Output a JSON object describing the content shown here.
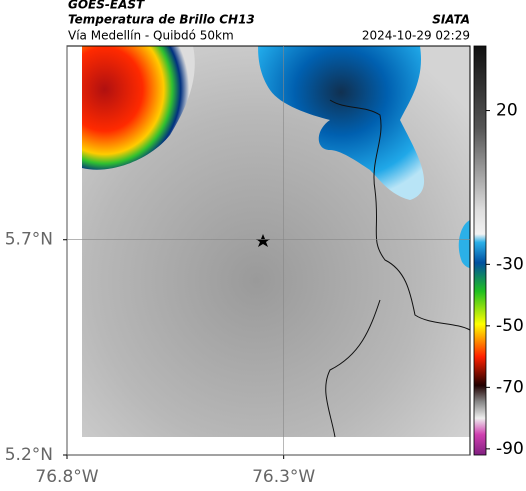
{
  "header": {
    "title": "GOES-EAST",
    "subtitle": "Temperatura de Brillo CH13",
    "source": "SIATA",
    "region": "Vía Medellín - Quibdó 50km",
    "timestamp": "2024-10-29 02:29"
  },
  "map": {
    "xlim": [
      -76.8,
      -75.87
    ],
    "ylim": [
      5.2,
      6.15
    ],
    "xticks": [
      {
        "value": -76.8,
        "label": "76.8°W"
      },
      {
        "value": -76.3,
        "label": "76.3°W"
      }
    ],
    "yticks": [
      {
        "value": 5.7,
        "label": "5.7°N"
      },
      {
        "value": 5.2,
        "label": "5.2°N"
      }
    ]
  },
  "colorbar": {
    "lim": [
      41,
      -92
    ],
    "ticks": [
      20,
      -30,
      -50,
      -70,
      -90
    ]
  }
}
